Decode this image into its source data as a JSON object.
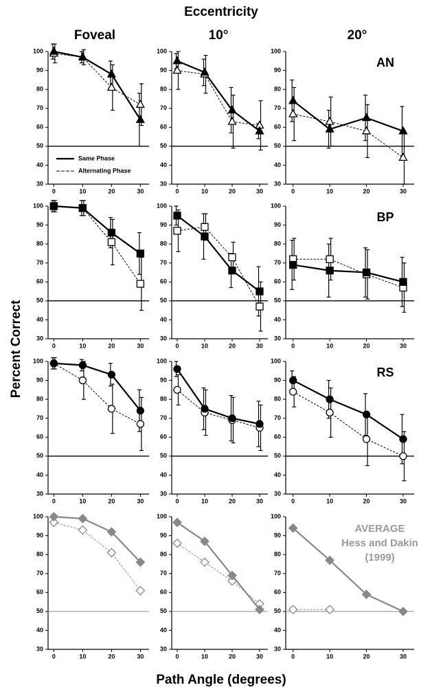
{
  "figure": {
    "title": "Eccentricity",
    "columns": [
      "Foveal",
      "10°",
      "20°"
    ],
    "ylabel": "Percent Correct",
    "xlabel": "Path Angle (degrees)"
  },
  "chart_data": [
    {
      "type": "line",
      "marker": "triangle",
      "x": [
        0,
        10,
        20,
        30
      ],
      "xlim": [
        -2,
        33
      ],
      "xticks": [
        0,
        10,
        20,
        30
      ],
      "ylim": [
        30,
        100
      ],
      "yticks": [
        30,
        40,
        50,
        60,
        70,
        80,
        90,
        100
      ],
      "hline": 50,
      "series": [
        {
          "name": "Same Phase",
          "color": "#000000",
          "filled": true,
          "dashed": false,
          "values": [
            100,
            97,
            88,
            64
          ],
          "errors": [
            4,
            3,
            7,
            14
          ]
        },
        {
          "name": "Alternating Phase",
          "color": "#000000",
          "filled": false,
          "dashed": true,
          "values": [
            99,
            97,
            81,
            72
          ],
          "errors": [
            5,
            4,
            12,
            11
          ]
        }
      ]
    },
    {
      "type": "line",
      "marker": "triangle",
      "x": [
        0,
        10,
        20,
        30
      ],
      "xlim": [
        -2,
        33
      ],
      "xticks": [
        0,
        10,
        20,
        30
      ],
      "ylim": [
        30,
        100
      ],
      "yticks": [
        30,
        40,
        50,
        60,
        70,
        80,
        90,
        100
      ],
      "hline": 50,
      "series": [
        {
          "color": "#000000",
          "filled": true,
          "dashed": false,
          "values": [
            95,
            89,
            69,
            58
          ],
          "errors": [
            4,
            7,
            12,
            4
          ]
        },
        {
          "color": "#000000",
          "filled": false,
          "dashed": true,
          "values": [
            90,
            88,
            63,
            61
          ],
          "errors": [
            10,
            10,
            14,
            13
          ]
        }
      ]
    },
    {
      "type": "line",
      "marker": "triangle",
      "label": "AN",
      "x": [
        0,
        10,
        20,
        30
      ],
      "xlim": [
        -2,
        33
      ],
      "xticks": [
        0,
        10,
        20,
        30
      ],
      "ylim": [
        30,
        100
      ],
      "yticks": [
        30,
        40,
        50,
        60,
        70,
        80,
        90,
        100
      ],
      "hline": 50,
      "series": [
        {
          "color": "#000000",
          "filled": true,
          "dashed": false,
          "values": [
            74,
            59,
            65,
            58
          ],
          "errors": [
            11,
            10,
            12,
            13
          ]
        },
        {
          "color": "#000000",
          "filled": false,
          "dashed": true,
          "values": [
            67,
            63,
            58,
            44
          ],
          "errors": [
            14,
            13,
            14,
            14
          ]
        }
      ]
    },
    {
      "type": "line",
      "marker": "square",
      "x": [
        0,
        10,
        20,
        30
      ],
      "xlim": [
        -2,
        33
      ],
      "xticks": [
        0,
        10,
        20,
        30
      ],
      "ylim": [
        30,
        100
      ],
      "yticks": [
        30,
        40,
        50,
        60,
        70,
        80,
        90,
        100
      ],
      "hline": 50,
      "series": [
        {
          "color": "#000000",
          "filled": true,
          "dashed": false,
          "values": [
            100,
            99,
            86,
            75
          ],
          "errors": [
            3,
            4,
            8,
            11
          ]
        },
        {
          "color": "#000000",
          "filled": false,
          "dashed": true,
          "values": [
            100,
            99,
            81,
            59
          ],
          "errors": [
            3,
            4,
            12,
            14
          ]
        }
      ]
    },
    {
      "type": "line",
      "marker": "square",
      "x": [
        0,
        10,
        20,
        30
      ],
      "xlim": [
        -2,
        33
      ],
      "xticks": [
        0,
        10,
        20,
        30
      ],
      "ylim": [
        30,
        100
      ],
      "yticks": [
        30,
        40,
        50,
        60,
        70,
        80,
        90,
        100
      ],
      "hline": 50,
      "series": [
        {
          "color": "#000000",
          "filled": true,
          "dashed": false,
          "values": [
            95,
            84,
            66,
            55
          ],
          "errors": [
            5,
            12,
            9,
            13
          ]
        },
        {
          "color": "#000000",
          "filled": false,
          "dashed": true,
          "values": [
            87,
            89,
            73,
            47
          ],
          "errors": [
            11,
            7,
            8,
            13
          ]
        }
      ]
    },
    {
      "type": "line",
      "marker": "square",
      "label": "BP",
      "x": [
        0,
        10,
        20,
        30
      ],
      "xlim": [
        -2,
        33
      ],
      "xticks": [
        0,
        10,
        20,
        30
      ],
      "ylim": [
        30,
        100
      ],
      "yticks": [
        30,
        40,
        50,
        60,
        70,
        80,
        90,
        100
      ],
      "hline": 50,
      "series": [
        {
          "color": "#000000",
          "filled": true,
          "dashed": false,
          "values": [
            69,
            66,
            65,
            60
          ],
          "errors": [
            13,
            14,
            13,
            13
          ]
        },
        {
          "color": "#000000",
          "filled": false,
          "dashed": true,
          "values": [
            72,
            72,
            64,
            57
          ],
          "errors": [
            11,
            11,
            13,
            13
          ]
        }
      ]
    },
    {
      "type": "line",
      "marker": "circle",
      "x": [
        0,
        10,
        20,
        30
      ],
      "xlim": [
        -2,
        33
      ],
      "xticks": [
        0,
        10,
        20,
        30
      ],
      "ylim": [
        30,
        100
      ],
      "yticks": [
        30,
        40,
        50,
        60,
        70,
        80,
        90,
        100
      ],
      "hline": 50,
      "series": [
        {
          "color": "#000000",
          "filled": true,
          "dashed": false,
          "values": [
            99,
            98,
            93,
            74
          ],
          "errors": [
            3,
            3,
            6,
            11
          ]
        },
        {
          "color": "#000000",
          "filled": false,
          "dashed": true,
          "values": [
            99,
            90,
            75,
            67
          ],
          "errors": [
            3,
            10,
            13,
            14
          ]
        }
      ]
    },
    {
      "type": "line",
      "marker": "circle",
      "x": [
        0,
        10,
        20,
        30
      ],
      "xlim": [
        -2,
        33
      ],
      "xticks": [
        0,
        10,
        20,
        30
      ],
      "ylim": [
        30,
        100
      ],
      "yticks": [
        30,
        40,
        50,
        60,
        70,
        80,
        90,
        100
      ],
      "hline": 50,
      "series": [
        {
          "color": "#000000",
          "filled": true,
          "dashed": false,
          "values": [
            96,
            75,
            70,
            67
          ],
          "errors": [
            4,
            11,
            12,
            12
          ]
        },
        {
          "color": "#000000",
          "filled": false,
          "dashed": true,
          "values": [
            85,
            73,
            69,
            65
          ],
          "errors": [
            8,
            12,
            12,
            12
          ]
        }
      ]
    },
    {
      "type": "line",
      "marker": "circle",
      "label": "RS",
      "x": [
        0,
        10,
        20,
        30
      ],
      "xlim": [
        -2,
        33
      ],
      "xticks": [
        0,
        10,
        20,
        30
      ],
      "ylim": [
        30,
        100
      ],
      "yticks": [
        30,
        40,
        50,
        60,
        70,
        80,
        90,
        100
      ],
      "hline": 50,
      "series": [
        {
          "color": "#000000",
          "filled": true,
          "dashed": false,
          "values": [
            90,
            80,
            72,
            59
          ],
          "errors": [
            5,
            10,
            11,
            13
          ]
        },
        {
          "color": "#000000",
          "filled": false,
          "dashed": true,
          "values": [
            84,
            73,
            59,
            50
          ],
          "errors": [
            8,
            13,
            14,
            13
          ]
        }
      ]
    },
    {
      "type": "line",
      "marker": "diamond",
      "x": [
        0,
        10,
        20,
        30
      ],
      "xlim": [
        -2,
        33
      ],
      "xticks": [
        0,
        10,
        20,
        30
      ],
      "ylim": [
        30,
        100
      ],
      "yticks": [
        30,
        40,
        50,
        60,
        70,
        80,
        90,
        100
      ],
      "hline": 50,
      "series": [
        {
          "color": "#888888",
          "filled": true,
          "dashed": false,
          "values": [
            100,
            99,
            92,
            76
          ]
        },
        {
          "color": "#888888",
          "filled": false,
          "dashed": true,
          "values": [
            97,
            93,
            81,
            61
          ]
        }
      ]
    },
    {
      "type": "line",
      "marker": "diamond",
      "x": [
        0,
        10,
        20,
        30
      ],
      "xlim": [
        -2,
        33
      ],
      "xticks": [
        0,
        10,
        20,
        30
      ],
      "ylim": [
        30,
        100
      ],
      "yticks": [
        30,
        40,
        50,
        60,
        70,
        80,
        90,
        100
      ],
      "hline": 50,
      "series": [
        {
          "color": "#888888",
          "filled": true,
          "dashed": false,
          "values": [
            97,
            87,
            69,
            51
          ]
        },
        {
          "color": "#888888",
          "filled": false,
          "dashed": true,
          "values": [
            86,
            76,
            66,
            54
          ]
        }
      ]
    },
    {
      "type": "line",
      "marker": "diamond",
      "label_lines": [
        "AVERAGE",
        "Hess and Dakin",
        "(1999)"
      ],
      "label_color": "#999999",
      "x": [
        0,
        10,
        20,
        30
      ],
      "xlim": [
        -2,
        33
      ],
      "xticks": [
        0,
        10,
        20,
        30
      ],
      "ylim": [
        30,
        100
      ],
      "yticks": [
        30,
        40,
        50,
        60,
        70,
        80,
        90,
        100
      ],
      "hline": 50,
      "series": [
        {
          "color": "#888888",
          "filled": true,
          "dashed": false,
          "values": [
            94,
            77,
            59,
            50
          ]
        },
        {
          "color": "#888888",
          "filled": false,
          "dashed": true,
          "values": [
            51,
            51,
            null,
            null
          ]
        }
      ]
    }
  ]
}
